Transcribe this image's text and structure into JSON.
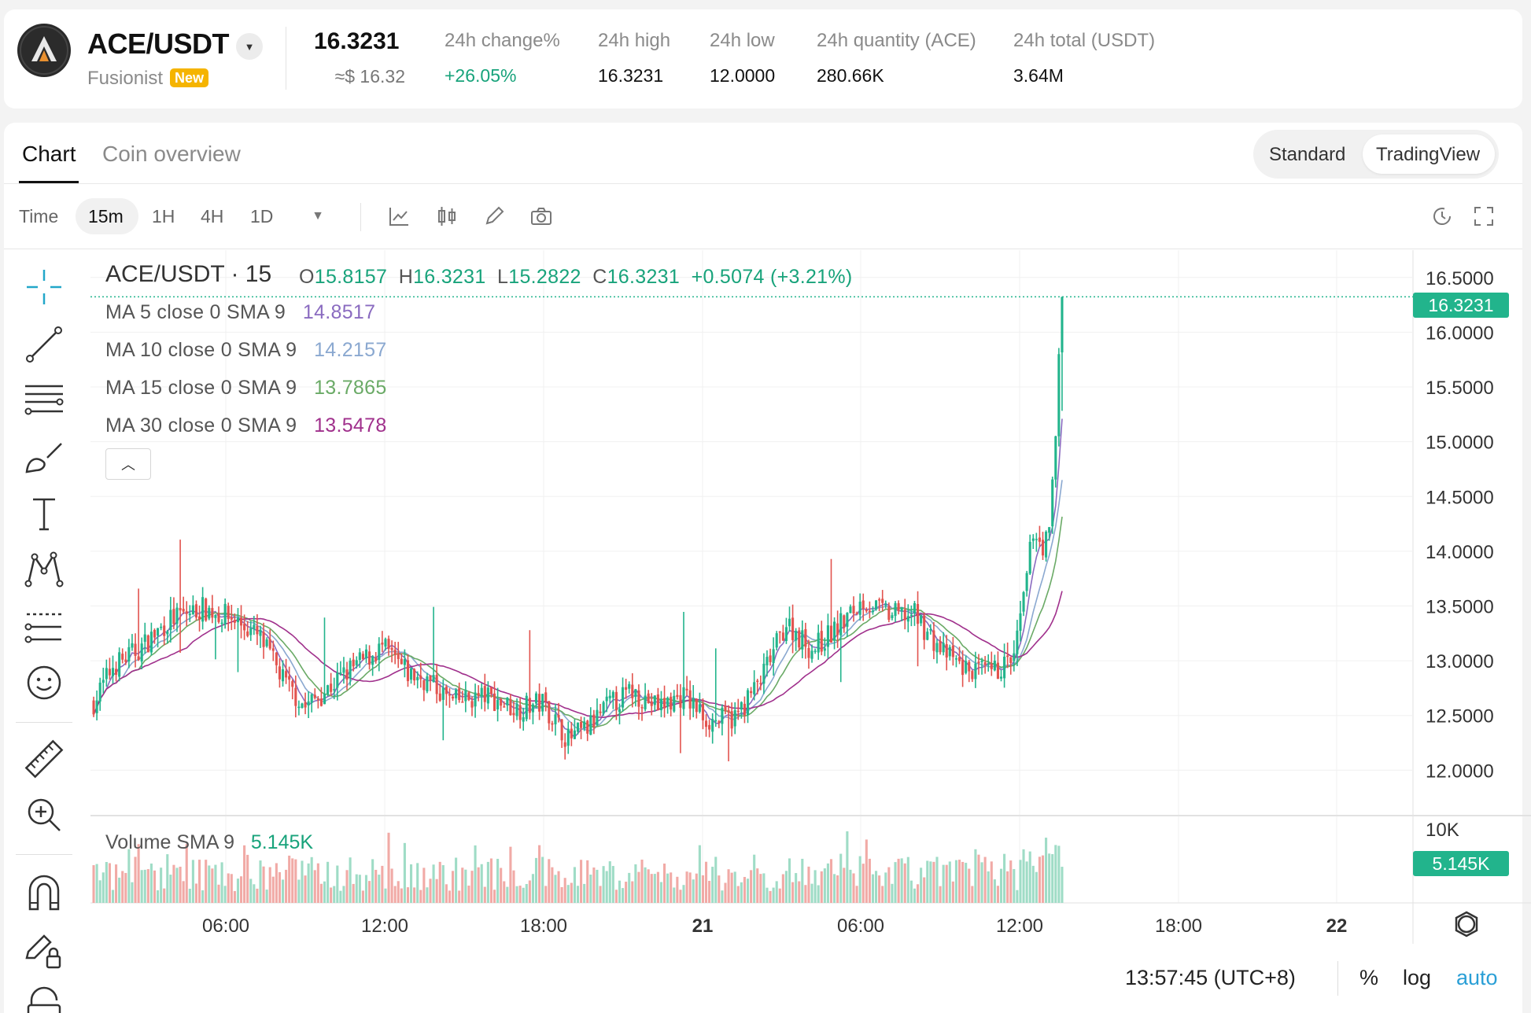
{
  "header": {
    "pair": "ACE/USDT",
    "project": "Fusionist",
    "new_badge": "New",
    "last_price": "16.3231",
    "usd_price": "≈$ 16.32",
    "stats": [
      {
        "label": "24h change%",
        "value": "+26.05%"
      },
      {
        "label": "24h high",
        "value": "16.3231"
      },
      {
        "label": "24h low",
        "value": "12.0000"
      },
      {
        "label": "24h quantity (ACE)",
        "value": "280.66K"
      },
      {
        "label": "24h total (USDT)",
        "value": "3.64M"
      }
    ]
  },
  "tabs": {
    "chart": "Chart",
    "overview": "Coin overview"
  },
  "view_toggle": {
    "standard": "Standard",
    "tradingview": "TradingView"
  },
  "toolbar": {
    "time_label": "Time",
    "intervals": [
      "15m",
      "1H",
      "4H",
      "1D"
    ],
    "selected_interval": "15m"
  },
  "legend": {
    "symbol": "ACE/USDT · 15",
    "o_label": "O",
    "o": "15.8157",
    "h_label": "H",
    "h": "16.3231",
    "l_label": "L",
    "l": "15.2822",
    "c_label": "C",
    "c": "16.3231",
    "change": "+0.5074 (+3.21%)",
    "ma": [
      {
        "label": "MA 5 close 0 SMA 9",
        "value": "14.8517",
        "color": "#8a6bc0"
      },
      {
        "label": "MA 10 close 0 SMA 9",
        "value": "14.2157",
        "color": "#8aa8d0"
      },
      {
        "label": "MA 15 close 0 SMA 9",
        "value": "13.7865",
        "color": "#6aaa66"
      },
      {
        "label": "MA 30 close 0 SMA 9",
        "value": "13.5478",
        "color": "#a0308c"
      }
    ],
    "volume_label": "Volume SMA 9",
    "volume_value": "5.145K"
  },
  "price_axis": {
    "ticks": [
      "16.5000",
      "16.0000",
      "15.5000",
      "15.0000",
      "14.5000",
      "14.0000",
      "13.5000",
      "13.0000",
      "12.5000",
      "12.0000"
    ],
    "last_price_tag": "16.3231",
    "volume_tick": "10K",
    "volume_tag": "5.145K"
  },
  "time_axis": {
    "ticks": [
      "06:00",
      "12:00",
      "18:00",
      "21",
      "06:00",
      "12:00",
      "18:00",
      "22"
    ]
  },
  "footer": {
    "clock": "13:57:45 (UTC+8)",
    "percent": "%",
    "log": "log",
    "auto": "auto"
  },
  "colors": {
    "up": "#22b48c",
    "down": "#e2534e",
    "accent": "#18a37b",
    "auto": "#2a9fd6"
  },
  "chart_data": {
    "type": "candlestick",
    "title": "ACE/USDT · 15",
    "interval": "15m",
    "x_ticks": [
      "06:00",
      "12:00",
      "18:00",
      "21",
      "06:00",
      "12:00",
      "18:00",
      "22"
    ],
    "ylim": [
      11.6,
      16.75
    ],
    "y_ticks": [
      16.5,
      16.0,
      15.5,
      15.0,
      14.5,
      14.0,
      13.5,
      13.0,
      12.5,
      12.0
    ],
    "last_candle": {
      "open": 15.8157,
      "high": 16.3231,
      "low": 15.2822,
      "close": 16.3231
    },
    "close_anchors": [
      [
        0,
        12.62
      ],
      [
        6,
        12.95
      ],
      [
        14,
        13.1
      ],
      [
        24,
        13.38
      ],
      [
        34,
        13.48
      ],
      [
        44,
        13.38
      ],
      [
        52,
        13.2
      ],
      [
        60,
        12.78
      ],
      [
        66,
        12.58
      ],
      [
        72,
        12.72
      ],
      [
        80,
        12.92
      ],
      [
        90,
        13.12
      ],
      [
        98,
        12.88
      ],
      [
        104,
        12.82
      ],
      [
        112,
        12.62
      ],
      [
        122,
        12.68
      ],
      [
        132,
        12.56
      ],
      [
        140,
        12.62
      ],
      [
        148,
        12.28
      ],
      [
        154,
        12.38
      ],
      [
        160,
        12.58
      ],
      [
        168,
        12.72
      ],
      [
        176,
        12.58
      ],
      [
        184,
        12.68
      ],
      [
        192,
        12.45
      ],
      [
        200,
        12.48
      ],
      [
        208,
        12.82
      ],
      [
        216,
        13.35
      ],
      [
        224,
        13.1
      ],
      [
        232,
        13.3
      ],
      [
        240,
        13.55
      ],
      [
        248,
        13.42
      ],
      [
        256,
        13.42
      ],
      [
        264,
        13.1
      ],
      [
        272,
        12.92
      ],
      [
        280,
        12.88
      ],
      [
        287,
        13.02
      ],
      [
        290,
        13.55
      ],
      [
        293,
        14.2
      ],
      [
        296,
        14.05
      ],
      [
        298,
        14.15
      ],
      [
        300,
        15.05
      ],
      [
        301,
        15.8
      ],
      [
        302,
        16.32
      ]
    ],
    "volume_ylim": [
      0,
      10000
    ],
    "volume_last_sma": 5145
  }
}
